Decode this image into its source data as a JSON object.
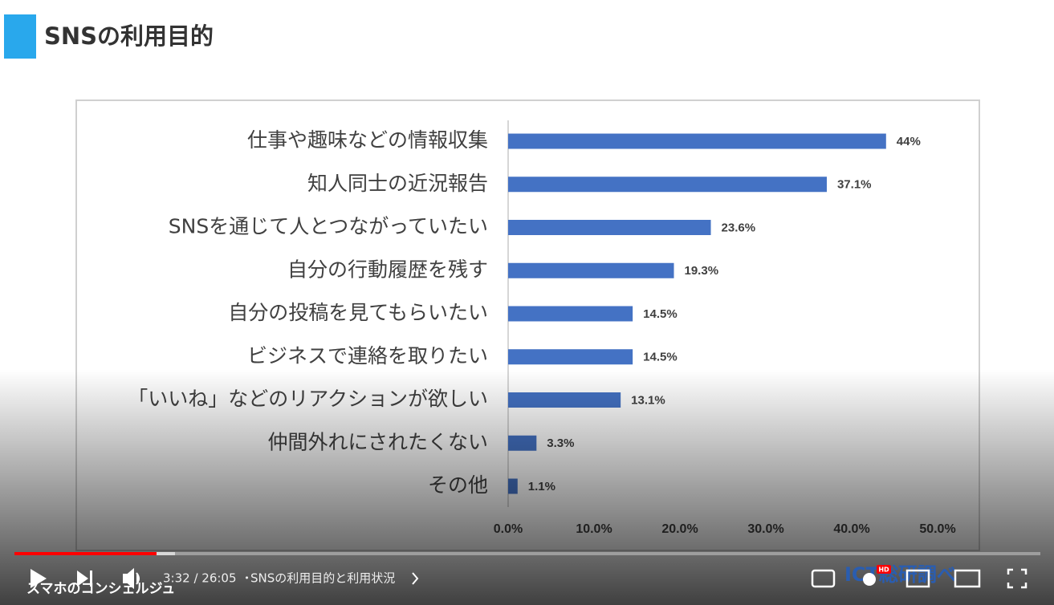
{
  "chart_data": {
    "type": "bar",
    "title": "SNSの利用目的",
    "categories": [
      "仕事や趣味などの情報収集",
      "知人同士の近況報告",
      "SNSを通じて人とつながっていたい",
      "自分の行動履歴を残す",
      "自分の投稿を見てもらいたい",
      "ビジネスで連絡を取りたい",
      "「いいね」などのリアクションが欲しい",
      "仲間外れにされたくない",
      "その他"
    ],
    "values": [
      44,
      37.1,
      23.6,
      19.3,
      14.5,
      14.5,
      13.1,
      3.3,
      1.1
    ],
    "value_labels": [
      "44%",
      "37.1%",
      "23.6%",
      "19.3%",
      "14.5%",
      "14.5%",
      "13.1%",
      "3.3%",
      "1.1%"
    ],
    "color": "#4472c4",
    "xlim": [
      0,
      50
    ],
    "xticks": [
      {
        "value": 0,
        "label": "0.0%"
      },
      {
        "value": 10,
        "label": "10.0%"
      },
      {
        "value": 20,
        "label": "20.0%"
      },
      {
        "value": 30,
        "label": "30.0%"
      },
      {
        "value": 40,
        "label": "40.0%"
      },
      {
        "value": 50,
        "label": "50.0%"
      }
    ],
    "grid": false
  },
  "player": {
    "time": "3:32 / 26:05",
    "chapter": "SNSの利用目的と利用状況",
    "channel": "スマホのコンシェルジュ",
    "watermark": "ICT総研調べ",
    "quality_badge": "HD"
  }
}
